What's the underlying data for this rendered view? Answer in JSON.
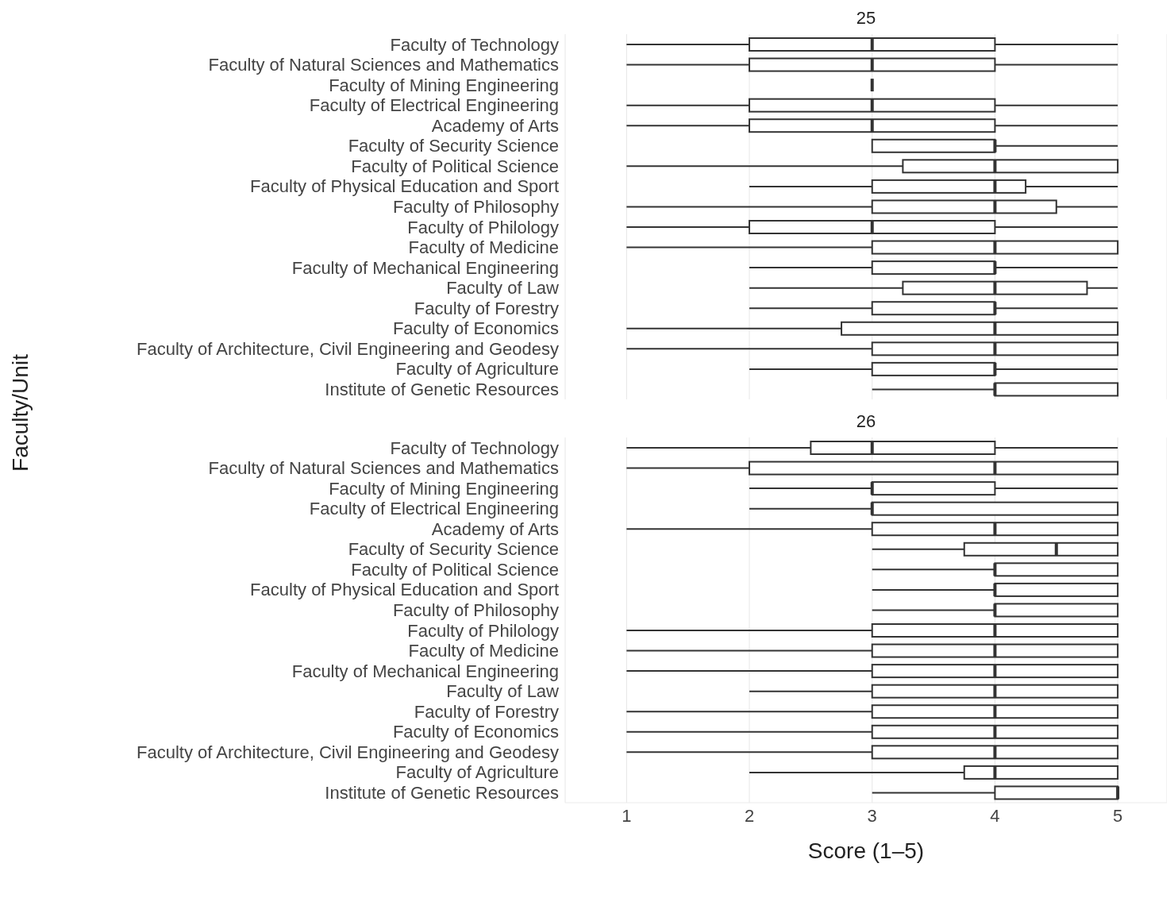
{
  "chart_data": [
    {
      "type": "box",
      "title": "25",
      "ylabel": "Faculty/Unit",
      "orientation": "horizontal",
      "tick_labels": "y",
      "grid": "x",
      "xlim": [
        0.5,
        5.4
      ],
      "xticks": [
        1,
        2,
        3,
        4,
        5
      ],
      "color": "#333333",
      "categories": [
        "Faculty of Technology",
        "Faculty of Natural Sciences and Mathematics",
        "Faculty of Mining Engineering",
        "Faculty of Electrical Engineering",
        "Academy of Arts",
        "Faculty of Security Science",
        "Faculty of Political Science",
        "Faculty of Physical Education and Sport",
        "Faculty of Philosophy",
        "Faculty of Philology",
        "Faculty of Medicine",
        "Faculty of Mechanical Engineering",
        "Faculty of Law",
        "Faculty of Forestry",
        "Faculty of Economics",
        "Faculty of Architecture, Civil Engineering and Geodesy",
        "Faculty of Agriculture",
        "Institute of Genetic Resources"
      ],
      "boxes": [
        {
          "low": 1,
          "q1": 2,
          "median": 3,
          "q3": 4,
          "high": 5
        },
        {
          "low": 1,
          "q1": 2,
          "median": 3,
          "q3": 4,
          "high": 5
        },
        {
          "low": 3,
          "q1": 3,
          "median": 3,
          "q3": 3,
          "high": 3
        },
        {
          "low": 1,
          "q1": 2,
          "median": 3,
          "q3": 4,
          "high": 5
        },
        {
          "low": 1,
          "q1": 2,
          "median": 3,
          "q3": 4,
          "high": 5
        },
        {
          "low": 3,
          "q1": 3,
          "median": 4,
          "q3": 4,
          "high": 5
        },
        {
          "low": 1,
          "q1": 3.25,
          "median": 4,
          "q3": 5,
          "high": 5
        },
        {
          "low": 2,
          "q1": 3,
          "median": 4,
          "q3": 4.25,
          "high": 5
        },
        {
          "low": 1,
          "q1": 3,
          "median": 4,
          "q3": 4.5,
          "high": 5
        },
        {
          "low": 1,
          "q1": 2,
          "median": 3,
          "q3": 4,
          "high": 5
        },
        {
          "low": 1,
          "q1": 3,
          "median": 4,
          "q3": 5,
          "high": 5
        },
        {
          "low": 2,
          "q1": 3,
          "median": 4,
          "q3": 4,
          "high": 5
        },
        {
          "low": 2,
          "q1": 3.25,
          "median": 4,
          "q3": 4.75,
          "high": 5
        },
        {
          "low": 2,
          "q1": 3,
          "median": 4,
          "q3": 4,
          "high": 5
        },
        {
          "low": 1,
          "q1": 2.75,
          "median": 4,
          "q3": 5,
          "high": 5
        },
        {
          "low": 1,
          "q1": 3,
          "median": 4,
          "q3": 5,
          "high": 5
        },
        {
          "low": 2,
          "q1": 3,
          "median": 4,
          "q3": 4,
          "high": 5
        },
        {
          "low": 3,
          "q1": 4,
          "median": 4,
          "q3": 5,
          "high": 5
        }
      ]
    },
    {
      "type": "box",
      "title": "26",
      "xlabel": "Score (1–5)",
      "orientation": "horizontal",
      "grid": "x",
      "xlim": [
        0.5,
        5.4
      ],
      "xticks": [
        1,
        2,
        3,
        4,
        5
      ],
      "color": "#333333",
      "categories": [
        "Faculty of Technology",
        "Faculty of Natural Sciences and Mathematics",
        "Faculty of Mining Engineering",
        "Faculty of Electrical Engineering",
        "Academy of Arts",
        "Faculty of Security Science",
        "Faculty of Political Science",
        "Faculty of Physical Education and Sport",
        "Faculty of Philosophy",
        "Faculty of Philology",
        "Faculty of Medicine",
        "Faculty of Mechanical Engineering",
        "Faculty of Law",
        "Faculty of Forestry",
        "Faculty of Economics",
        "Faculty of Architecture, Civil Engineering and Geodesy",
        "Faculty of Agriculture",
        "Institute of Genetic Resources"
      ],
      "boxes": [
        {
          "low": 1,
          "q1": 2.5,
          "median": 3,
          "q3": 4,
          "high": 5
        },
        {
          "low": 1,
          "q1": 2,
          "median": 4,
          "q3": 5,
          "high": 5
        },
        {
          "low": 2,
          "q1": 3,
          "median": 3,
          "q3": 4,
          "high": 5
        },
        {
          "low": 2,
          "q1": 3,
          "median": 3,
          "q3": 5,
          "high": 5
        },
        {
          "low": 1,
          "q1": 3,
          "median": 4,
          "q3": 5,
          "high": 5
        },
        {
          "low": 3,
          "q1": 3.75,
          "median": 4.5,
          "q3": 5,
          "high": 5
        },
        {
          "low": 3,
          "q1": 4,
          "median": 4,
          "q3": 5,
          "high": 5
        },
        {
          "low": 3,
          "q1": 4,
          "median": 4,
          "q3": 5,
          "high": 5
        },
        {
          "low": 3,
          "q1": 4,
          "median": 4,
          "q3": 5,
          "high": 5
        },
        {
          "low": 1,
          "q1": 3,
          "median": 4,
          "q3": 5,
          "high": 5
        },
        {
          "low": 1,
          "q1": 3,
          "median": 4,
          "q3": 5,
          "high": 5
        },
        {
          "low": 1,
          "q1": 3,
          "median": 4,
          "q3": 5,
          "high": 5
        },
        {
          "low": 2,
          "q1": 3,
          "median": 4,
          "q3": 5,
          "high": 5
        },
        {
          "low": 1,
          "q1": 3,
          "median": 4,
          "q3": 5,
          "high": 5
        },
        {
          "low": 1,
          "q1": 3,
          "median": 4,
          "q3": 5,
          "high": 5
        },
        {
          "low": 1,
          "q1": 3,
          "median": 4,
          "q3": 5,
          "high": 5
        },
        {
          "low": 2,
          "q1": 3.75,
          "median": 4,
          "q3": 5,
          "high": 5
        },
        {
          "low": 3,
          "q1": 4,
          "median": 5,
          "q3": 5,
          "high": 5
        }
      ]
    }
  ]
}
